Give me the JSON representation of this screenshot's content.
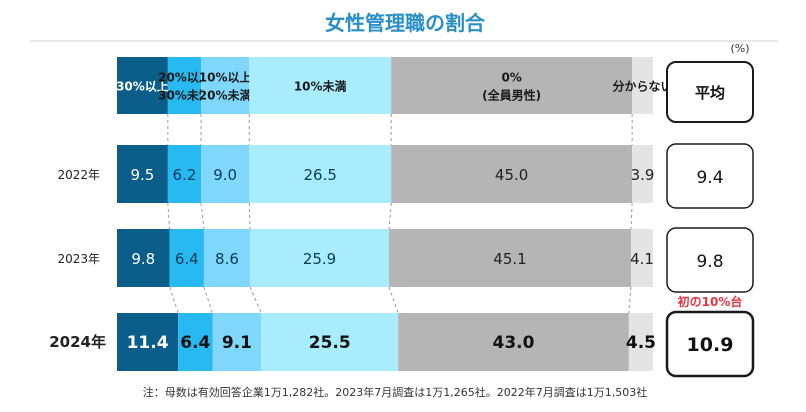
{
  "chart_data": {
    "type": "bar",
    "stacked": true,
    "orientation": "horizontal",
    "title": "女性管理職の割合",
    "unit": "(%)",
    "categories": [
      "2022年",
      "2023年",
      "2024年"
    ],
    "series": [
      {
        "name": "30%以上",
        "color": "#0b5d8a",
        "values": [
          9.5,
          9.8,
          11.4
        ]
      },
      {
        "name": "20%以上\n30%未満",
        "color": "#27b9f0",
        "values": [
          6.2,
          6.4,
          6.4
        ]
      },
      {
        "name": "10%以上\n20%未満",
        "color": "#7fd8fb",
        "values": [
          9.0,
          8.6,
          9.1
        ]
      },
      {
        "name": "10%未満",
        "color": "#a9ecfd",
        "values": [
          26.5,
          25.9,
          25.5
        ]
      },
      {
        "name": "0%\n(全員男性)",
        "color": "#b5b5b5",
        "values": [
          45.0,
          45.1,
          43.0
        ]
      },
      {
        "name": "分からない",
        "color": "#e4e4e4",
        "values": [
          3.9,
          4.1,
          4.5
        ]
      }
    ],
    "average": {
      "label": "平均",
      "values": [
        9.4,
        9.8,
        10.9
      ]
    },
    "highlight_year_index": 2,
    "callout": "初の10%台",
    "note": "注：母数は有効回答企業1万1,282社。2023年7月調査は1万1,265社。2022年7月調査は1万1,503社",
    "xlim": [
      0,
      100
    ],
    "legend_position": "top"
  }
}
